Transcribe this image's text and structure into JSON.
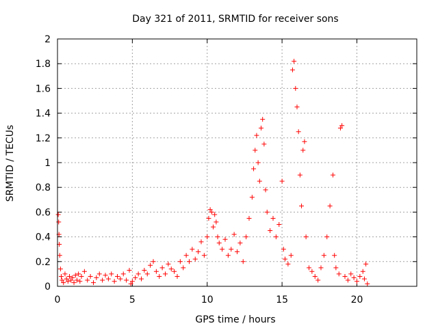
{
  "chart_data": {
    "type": "scatter",
    "title": "Day 321 of 2011, SRMTID for receiver sons",
    "xlabel": "GPS time / hours",
    "ylabel": "SRMTID / TECUs",
    "xlim": [
      0,
      24
    ],
    "ylim": [
      0,
      2
    ],
    "xticks": [
      0,
      5,
      10,
      15,
      20
    ],
    "yticks": [
      0,
      0.2,
      0.4,
      0.6,
      0.8,
      1,
      1.2,
      1.4,
      1.6,
      1.8,
      2
    ],
    "xtick_labels": [
      "0",
      "5",
      "10",
      "15",
      "20"
    ],
    "ytick_labels": [
      "0",
      "0.2",
      "0.4",
      "0.6",
      "0.8",
      "1",
      "1.2",
      "1.4",
      "1.6",
      "1.8",
      "2"
    ],
    "grid": true,
    "marker": "+",
    "marker_color": "#ff0000",
    "series": [
      {
        "name": "SRMTID",
        "points": [
          [
            0.05,
            0.58
          ],
          [
            0.08,
            0.52
          ],
          [
            0.1,
            0.42
          ],
          [
            0.12,
            0.34
          ],
          [
            0.15,
            0.25
          ],
          [
            0.2,
            0.14
          ],
          [
            0.25,
            0.08
          ],
          [
            0.3,
            0.05
          ],
          [
            0.4,
            0.03
          ],
          [
            0.5,
            0.1
          ],
          [
            0.6,
            0.06
          ],
          [
            0.7,
            0.04
          ],
          [
            0.8,
            0.08
          ],
          [
            0.9,
            0.05
          ],
          [
            1.0,
            0.07
          ],
          [
            1.1,
            0.03
          ],
          [
            1.2,
            0.09
          ],
          [
            1.3,
            0.05
          ],
          [
            1.4,
            0.1
          ],
          [
            1.5,
            0.04
          ],
          [
            1.6,
            0.08
          ],
          [
            1.8,
            0.12
          ],
          [
            2.0,
            0.05
          ],
          [
            2.2,
            0.08
          ],
          [
            2.4,
            0.03
          ],
          [
            2.6,
            0.07
          ],
          [
            2.8,
            0.1
          ],
          [
            3.0,
            0.05
          ],
          [
            3.2,
            0.09
          ],
          [
            3.4,
            0.06
          ],
          [
            3.6,
            0.1
          ],
          [
            3.8,
            0.04
          ],
          [
            4.0,
            0.08
          ],
          [
            4.2,
            0.06
          ],
          [
            4.4,
            0.1
          ],
          [
            4.6,
            0.05
          ],
          [
            4.8,
            0.13
          ],
          [
            4.9,
            0.02
          ],
          [
            5.0,
            0.04
          ],
          [
            5.2,
            0.07
          ],
          [
            5.4,
            0.1
          ],
          [
            5.6,
            0.06
          ],
          [
            5.8,
            0.13
          ],
          [
            6.0,
            0.1
          ],
          [
            6.2,
            0.17
          ],
          [
            6.4,
            0.2
          ],
          [
            6.6,
            0.12
          ],
          [
            6.8,
            0.08
          ],
          [
            7.0,
            0.15
          ],
          [
            7.2,
            0.1
          ],
          [
            7.4,
            0.18
          ],
          [
            7.6,
            0.14
          ],
          [
            7.8,
            0.12
          ],
          [
            8.0,
            0.08
          ],
          [
            8.2,
            0.2
          ],
          [
            8.4,
            0.15
          ],
          [
            8.6,
            0.25
          ],
          [
            8.8,
            0.2
          ],
          [
            9.0,
            0.3
          ],
          [
            9.2,
            0.22
          ],
          [
            9.4,
            0.28
          ],
          [
            9.6,
            0.36
          ],
          [
            9.8,
            0.25
          ],
          [
            10.0,
            0.4
          ],
          [
            10.1,
            0.55
          ],
          [
            10.2,
            0.62
          ],
          [
            10.3,
            0.6
          ],
          [
            10.4,
            0.48
          ],
          [
            10.5,
            0.58
          ],
          [
            10.6,
            0.52
          ],
          [
            10.7,
            0.4
          ],
          [
            10.8,
            0.35
          ],
          [
            11.0,
            0.3
          ],
          [
            11.2,
            0.38
          ],
          [
            11.4,
            0.25
          ],
          [
            11.6,
            0.3
          ],
          [
            11.8,
            0.42
          ],
          [
            12.0,
            0.28
          ],
          [
            12.2,
            0.35
          ],
          [
            12.4,
            0.2
          ],
          [
            12.6,
            0.4
          ],
          [
            12.8,
            0.55
          ],
          [
            13.0,
            0.72
          ],
          [
            13.1,
            0.95
          ],
          [
            13.2,
            1.1
          ],
          [
            13.3,
            1.22
          ],
          [
            13.4,
            1.0
          ],
          [
            13.5,
            0.85
          ],
          [
            13.6,
            1.28
          ],
          [
            13.7,
            1.35
          ],
          [
            13.8,
            1.15
          ],
          [
            13.9,
            0.78
          ],
          [
            14.0,
            0.6
          ],
          [
            14.2,
            0.45
          ],
          [
            14.4,
            0.55
          ],
          [
            14.6,
            0.4
          ],
          [
            14.8,
            0.5
          ],
          [
            15.0,
            0.85
          ],
          [
            15.1,
            0.3
          ],
          [
            15.2,
            0.22
          ],
          [
            15.4,
            0.18
          ],
          [
            15.6,
            0.25
          ],
          [
            15.7,
            1.75
          ],
          [
            15.8,
            1.82
          ],
          [
            15.9,
            1.6
          ],
          [
            16.0,
            1.45
          ],
          [
            16.1,
            1.25
          ],
          [
            16.2,
            0.9
          ],
          [
            16.3,
            0.65
          ],
          [
            16.4,
            1.1
          ],
          [
            16.5,
            1.17
          ],
          [
            16.6,
            0.4
          ],
          [
            16.8,
            0.15
          ],
          [
            17.0,
            0.12
          ],
          [
            17.2,
            0.08
          ],
          [
            17.4,
            0.05
          ],
          [
            17.6,
            0.15
          ],
          [
            17.8,
            0.25
          ],
          [
            18.0,
            0.4
          ],
          [
            18.2,
            0.65
          ],
          [
            18.4,
            0.9
          ],
          [
            18.5,
            0.25
          ],
          [
            18.6,
            0.15
          ],
          [
            18.8,
            0.1
          ],
          [
            18.9,
            1.28
          ],
          [
            19.0,
            1.3
          ],
          [
            19.2,
            0.08
          ],
          [
            19.4,
            0.05
          ],
          [
            19.6,
            0.1
          ],
          [
            19.8,
            0.07
          ],
          [
            20.0,
            0.04
          ],
          [
            20.2,
            0.08
          ],
          [
            20.4,
            0.12
          ],
          [
            20.5,
            0.06
          ],
          [
            20.6,
            0.18
          ],
          [
            20.7,
            0.02
          ]
        ]
      }
    ]
  }
}
